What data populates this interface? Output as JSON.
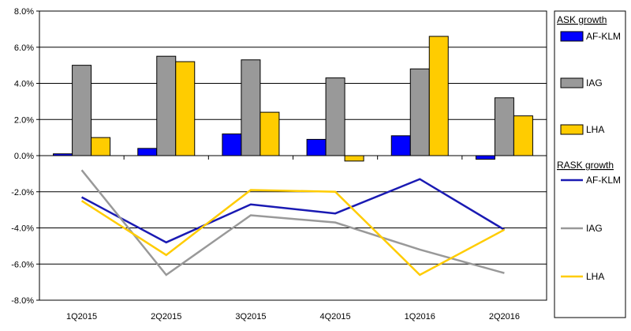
{
  "chart_data": {
    "type": "bar",
    "categories": [
      "1Q2015",
      "2Q2015",
      "3Q2015",
      "4Q2015",
      "1Q2016",
      "2Q2016"
    ],
    "ylim": [
      -8.0,
      8.0
    ],
    "yticks": [
      "8.0%",
      "6.0%",
      "4.0%",
      "2.0%",
      "0.0%",
      "-2.0%",
      "-4.0%",
      "-6.0%",
      "-8.0%"
    ],
    "ytick_values": [
      8,
      6,
      4,
      2,
      0,
      -2,
      -4,
      -6,
      -8
    ],
    "grid": true,
    "legend_position": "right",
    "bar_groups": {
      "legend_title": "ASK growth",
      "series": [
        {
          "name": "AF-KLM",
          "color": "#0000ff",
          "values": [
            0.1,
            0.4,
            1.2,
            0.9,
            1.1,
            -0.2
          ]
        },
        {
          "name": "IAG",
          "color": "#999999",
          "values": [
            5.0,
            5.5,
            5.3,
            4.3,
            4.8,
            3.2
          ]
        },
        {
          "name": "LHA",
          "color": "#ffcc00",
          "values": [
            1.0,
            5.2,
            2.4,
            -0.3,
            6.6,
            2.2
          ]
        }
      ]
    },
    "line_groups": {
      "legend_title": "RASK growth",
      "series": [
        {
          "name": "AF-KLM",
          "color": "#1a1ab3",
          "values": [
            -2.3,
            -4.8,
            -2.7,
            -3.2,
            -1.3,
            -4.1
          ]
        },
        {
          "name": "IAG",
          "color": "#999999",
          "values": [
            -0.8,
            -6.6,
            -3.3,
            -3.7,
            -5.2,
            -6.5
          ]
        },
        {
          "name": "LHA",
          "color": "#ffcc00",
          "values": [
            -2.5,
            -5.5,
            -1.9,
            -2.0,
            -6.6,
            -4.1
          ]
        }
      ]
    }
  }
}
